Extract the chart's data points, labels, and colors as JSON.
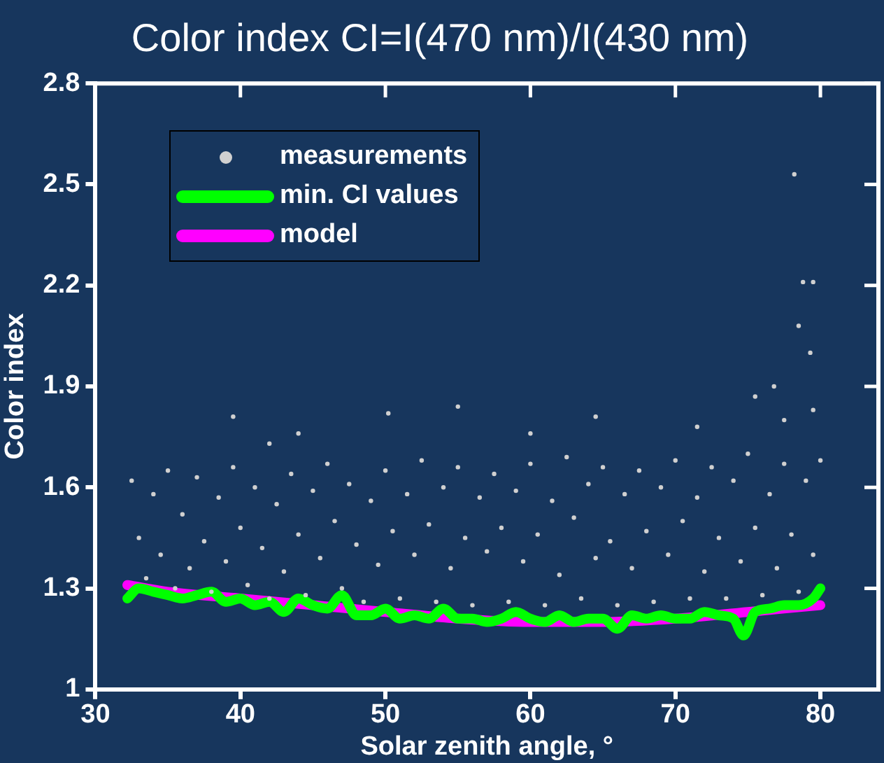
{
  "chart_data": {
    "type": "scatter",
    "title": "Color index CI=I(470 nm)/I(430 nm)",
    "xlabel": "Solar zenith angle, °",
    "ylabel": "Color index",
    "xlim": [
      30,
      84
    ],
    "xticks": [
      30,
      40,
      50,
      60,
      70,
      80
    ],
    "ylim": [
      1,
      2.8
    ],
    "yticks": [
      {
        "value": 1,
        "label": "1"
      },
      1.3,
      1.6,
      1.9,
      2.2,
      2.5,
      2.8
    ],
    "grid": false,
    "legend": "top left",
    "series": [
      {
        "name": "measurements",
        "marker": "circle",
        "color": "#d0d0d0",
        "x": [
          32.5,
          33,
          33.5,
          34,
          34.5,
          35,
          35.5,
          36,
          36.5,
          37,
          37.5,
          38,
          38.5,
          39,
          39.5,
          40,
          40.5,
          41,
          41.5,
          42,
          42.5,
          43,
          43.5,
          44,
          44.5,
          45,
          45.5,
          46,
          46.5,
          47,
          47.5,
          48,
          48.5,
          49,
          49.5,
          50,
          50.5,
          51,
          51.5,
          52,
          52.5,
          53,
          53.5,
          54,
          54.5,
          55,
          55.5,
          56,
          56.5,
          57,
          57.5,
          58,
          58.5,
          59,
          59.5,
          60,
          60.5,
          61,
          61.5,
          62,
          62.5,
          63,
          63.5,
          64,
          64.5,
          65,
          65.5,
          66,
          66.5,
          67,
          67.5,
          68,
          68.5,
          69,
          69.5,
          70,
          70.5,
          71,
          71.5,
          72,
          72.5,
          73,
          73.5,
          74,
          74.5,
          75,
          75.5,
          76,
          76.5,
          77,
          77.5,
          78,
          78.5,
          79,
          79.5,
          80,
          39.5,
          44,
          50.2,
          55,
          64.5,
          71.5,
          75.5,
          76.8,
          78.2,
          78.8,
          79.5,
          79.3,
          78.5,
          79.5,
          42,
          60,
          77.5
        ],
        "values": [
          1.62,
          1.45,
          1.33,
          1.58,
          1.4,
          1.65,
          1.3,
          1.52,
          1.36,
          1.63,
          1.44,
          1.29,
          1.57,
          1.38,
          1.66,
          1.48,
          1.31,
          1.6,
          1.42,
          1.27,
          1.55,
          1.35,
          1.64,
          1.46,
          1.28,
          1.59,
          1.39,
          1.67,
          1.5,
          1.3,
          1.61,
          1.43,
          1.26,
          1.56,
          1.37,
          1.65,
          1.47,
          1.27,
          1.58,
          1.4,
          1.68,
          1.49,
          1.26,
          1.6,
          1.36,
          1.66,
          1.45,
          1.25,
          1.57,
          1.41,
          1.64,
          1.48,
          1.26,
          1.59,
          1.38,
          1.67,
          1.46,
          1.25,
          1.56,
          1.34,
          1.69,
          1.51,
          1.27,
          1.61,
          1.39,
          1.66,
          1.44,
          1.25,
          1.58,
          1.36,
          1.65,
          1.47,
          1.26,
          1.6,
          1.4,
          1.68,
          1.5,
          1.27,
          1.57,
          1.35,
          1.66,
          1.45,
          1.27,
          1.62,
          1.38,
          1.7,
          1.48,
          1.28,
          1.58,
          1.36,
          1.67,
          1.46,
          1.29,
          1.62,
          1.4,
          1.68,
          1.81,
          1.76,
          1.82,
          1.84,
          1.81,
          1.78,
          1.87,
          1.9,
          2.53,
          2.21,
          2.21,
          2,
          2.08,
          1.83,
          1.73,
          1.76,
          1.8
        ]
      },
      {
        "name": "min. CI values",
        "type": "line",
        "marker": "none",
        "color": "#00ff00",
        "x": [
          32.2,
          33,
          34,
          35,
          36,
          37,
          38,
          39,
          40,
          41,
          42,
          43,
          44,
          45,
          46,
          47,
          48,
          49,
          50,
          51,
          52,
          53,
          54,
          55,
          56,
          57,
          58,
          59,
          60,
          61,
          62,
          63,
          64,
          65,
          66,
          67,
          68,
          69,
          70,
          71,
          72,
          73,
          74,
          74.7,
          75.5,
          76.5,
          77.5,
          78.5,
          79.5,
          80
        ],
        "values": [
          1.27,
          1.3,
          1.29,
          1.28,
          1.27,
          1.28,
          1.29,
          1.26,
          1.27,
          1.25,
          1.26,
          1.23,
          1.27,
          1.25,
          1.24,
          1.28,
          1.22,
          1.22,
          1.24,
          1.21,
          1.22,
          1.21,
          1.24,
          1.21,
          1.21,
          1.2,
          1.21,
          1.23,
          1.21,
          1.2,
          1.22,
          1.2,
          1.21,
          1.21,
          1.18,
          1.22,
          1.21,
          1.22,
          1.21,
          1.21,
          1.23,
          1.22,
          1.21,
          1.16,
          1.23,
          1.24,
          1.25,
          1.25,
          1.27,
          1.3
        ]
      },
      {
        "name": "model",
        "type": "line",
        "marker": "none",
        "color": "#ff00ff",
        "x": [
          32.2,
          35,
          40,
          45,
          50,
          55,
          60,
          65,
          70,
          75,
          80
        ],
        "values": [
          1.31,
          1.29,
          1.27,
          1.25,
          1.23,
          1.21,
          1.2,
          1.2,
          1.21,
          1.23,
          1.25
        ]
      }
    ]
  }
}
